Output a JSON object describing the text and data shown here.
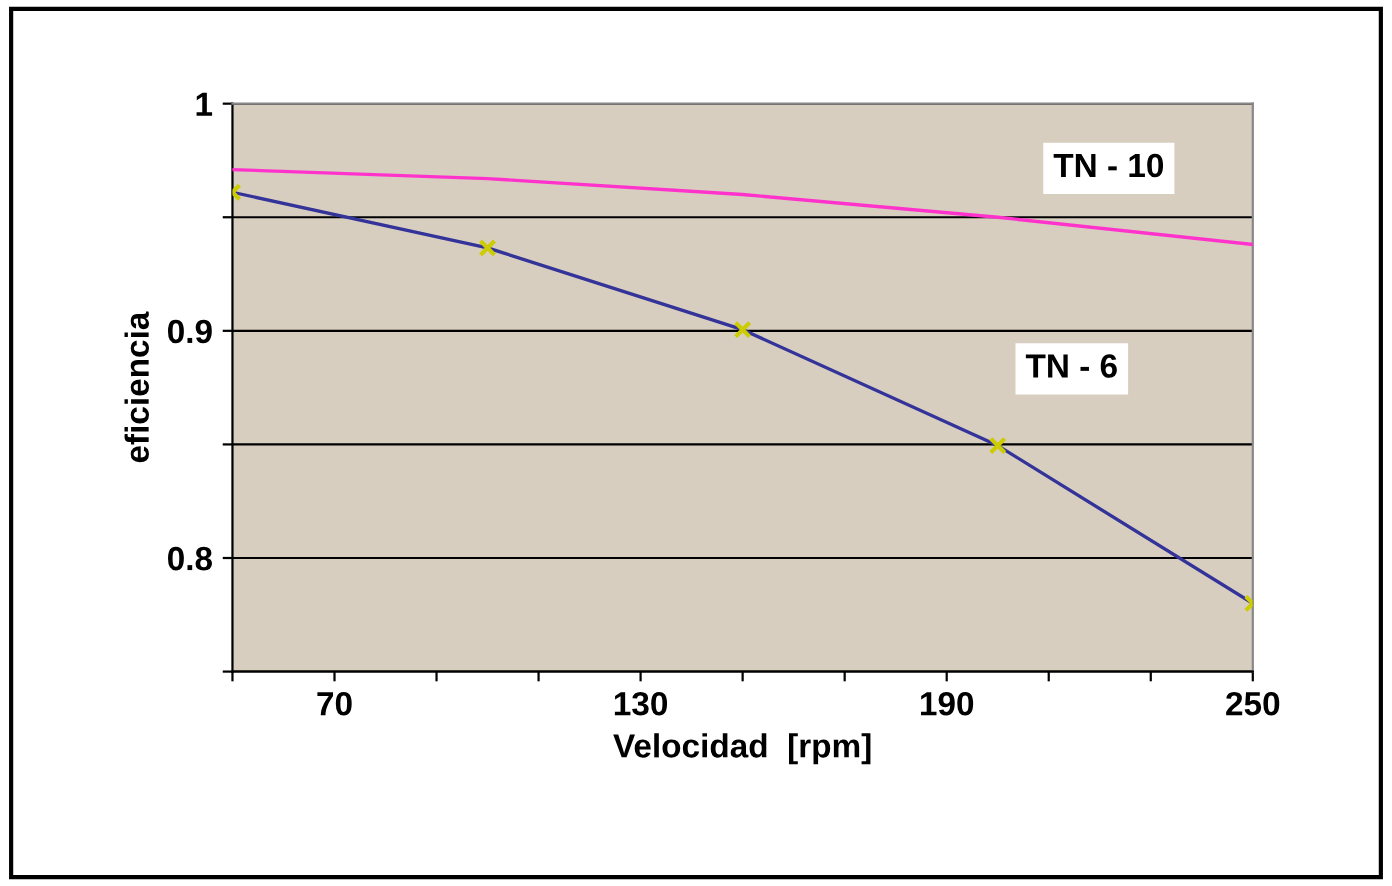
{
  "chart_data": {
    "type": "line",
    "xlabel": "Velocidad  [rpm]",
    "ylabel": "eficiencia",
    "x": [
      50,
      100,
      150,
      200,
      250
    ],
    "series": [
      {
        "name": "TN - 10",
        "color": "#ff33cc",
        "values": [
          0.971,
          0.967,
          0.96,
          0.95,
          0.938
        ],
        "marker": "none"
      },
      {
        "name": "TN - 6",
        "color": "#333399",
        "values": [
          0.961,
          0.9365,
          0.9005,
          0.8495,
          0.78
        ],
        "marker": "cross"
      }
    ],
    "xlim": [
      50,
      250
    ],
    "xticks": [
      {
        "value": 50,
        "label": null
      },
      70,
      {
        "value": 90,
        "label": null
      },
      {
        "value": 110,
        "label": null
      },
      130,
      {
        "value": 150,
        "label": null
      },
      {
        "value": 170,
        "label": null
      },
      190,
      {
        "value": 210,
        "label": null
      },
      {
        "value": 230,
        "label": null
      },
      250
    ],
    "ylim": [
      0.75,
      1
    ],
    "yticks": [
      {
        "value": 0.75,
        "label": null
      },
      0.8,
      {
        "value": 0.85,
        "label": null
      },
      0.9,
      {
        "value": 0.95,
        "label": null
      },
      1
    ],
    "grid": "y",
    "legend": false
  }
}
